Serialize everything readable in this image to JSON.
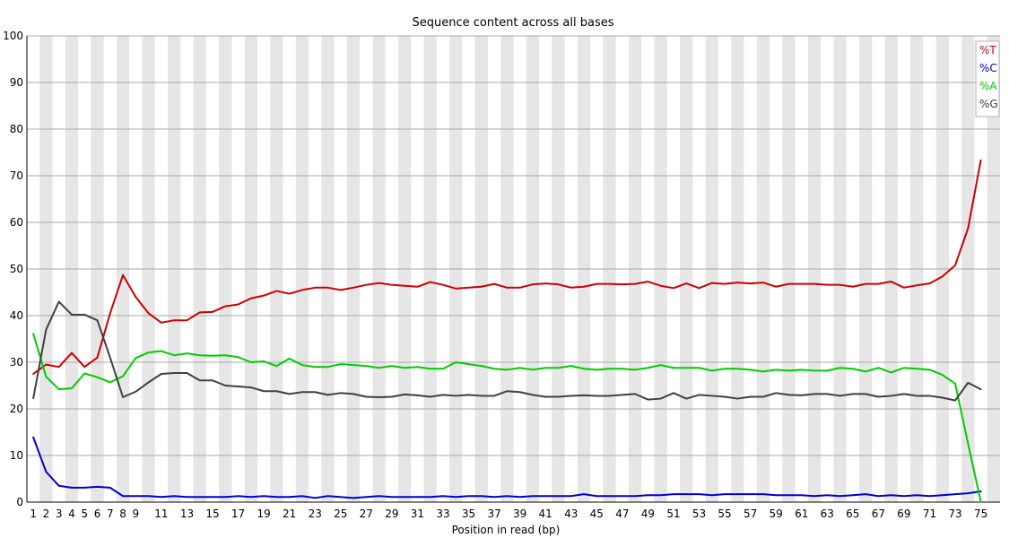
{
  "chart_data": {
    "type": "line",
    "title": "Sequence content across all bases",
    "xlabel": "Position in read (bp)",
    "ylabel": "",
    "ylim": [
      0,
      100
    ],
    "yticks": [
      0,
      10,
      20,
      30,
      40,
      50,
      60,
      70,
      80,
      90,
      100
    ],
    "x": [
      1,
      2,
      3,
      4,
      5,
      6,
      7,
      8,
      9,
      10,
      11,
      12,
      13,
      14,
      15,
      16,
      17,
      18,
      19,
      20,
      21,
      22,
      23,
      24,
      25,
      26,
      27,
      28,
      29,
      30,
      31,
      32,
      33,
      34,
      35,
      36,
      37,
      38,
      39,
      40,
      41,
      42,
      43,
      44,
      45,
      46,
      47,
      48,
      49,
      50,
      51,
      52,
      53,
      54,
      55,
      56,
      57,
      58,
      59,
      60,
      61,
      62,
      63,
      64,
      65,
      66,
      67,
      68,
      69,
      70,
      71,
      72,
      73,
      74,
      75
    ],
    "x_tick_labels": [
      "1",
      "2",
      "3",
      "4",
      "5",
      "6",
      "7",
      "8",
      "9",
      "11",
      "13",
      "15",
      "17",
      "19",
      "21",
      "23",
      "25",
      "27",
      "29",
      "31",
      "33",
      "35",
      "37",
      "39",
      "41",
      "43",
      "45",
      "47",
      "49",
      "51",
      "53",
      "55",
      "57",
      "59",
      "61",
      "63",
      "65",
      "67",
      "69",
      "71",
      "73",
      "75"
    ],
    "grid": "alternating vertical bands",
    "legend_position": "top-right",
    "series": [
      {
        "name": "%T",
        "color": "#cc0000",
        "values": [
          27.5,
          29.5,
          29.0,
          32.0,
          29.0,
          31.0,
          40.5,
          48.7,
          44.0,
          40.5,
          38.5,
          39.0,
          39.0,
          40.7,
          40.8,
          42.0,
          42.4,
          43.7,
          44.3,
          45.3,
          44.7,
          45.5,
          46.0,
          46.0,
          45.5,
          46.0,
          46.6,
          47.0,
          46.6,
          46.4,
          46.2,
          47.2,
          46.6,
          45.8,
          46.0,
          46.2,
          46.8,
          46.0,
          46.0,
          46.7,
          46.9,
          46.7,
          46.0,
          46.2,
          46.8,
          46.8,
          46.7,
          46.8,
          47.3,
          46.4,
          45.9,
          46.9,
          45.9,
          47.0,
          46.8,
          47.1,
          46.9,
          47.1,
          46.2,
          46.8,
          46.8,
          46.8,
          46.6,
          46.6,
          46.2,
          46.8,
          46.8,
          47.3,
          46.0,
          46.5,
          46.9,
          48.4,
          50.8,
          58.7,
          73.3
        ]
      },
      {
        "name": "%C",
        "color": "#0000cc",
        "values": [
          13.9,
          6.5,
          3.5,
          3.1,
          3.1,
          3.3,
          3.1,
          1.3,
          1.3,
          1.3,
          1.1,
          1.3,
          1.1,
          1.1,
          1.1,
          1.1,
          1.3,
          1.1,
          1.3,
          1.1,
          1.1,
          1.3,
          0.9,
          1.3,
          1.1,
          0.9,
          1.1,
          1.3,
          1.1,
          1.1,
          1.1,
          1.1,
          1.3,
          1.1,
          1.3,
          1.3,
          1.1,
          1.3,
          1.1,
          1.3,
          1.3,
          1.3,
          1.3,
          1.7,
          1.3,
          1.3,
          1.3,
          1.3,
          1.5,
          1.5,
          1.7,
          1.7,
          1.7,
          1.5,
          1.7,
          1.7,
          1.7,
          1.7,
          1.5,
          1.5,
          1.5,
          1.3,
          1.5,
          1.3,
          1.5,
          1.7,
          1.3,
          1.5,
          1.3,
          1.5,
          1.3,
          1.5,
          1.7,
          1.9,
          2.3
        ]
      },
      {
        "name": "%A",
        "color": "#00cc00",
        "values": [
          36.1,
          26.9,
          24.2,
          24.4,
          27.6,
          26.8,
          25.7,
          27.0,
          30.9,
          32.1,
          32.4,
          31.5,
          31.9,
          31.5,
          31.4,
          31.5,
          31.1,
          30.0,
          30.2,
          29.2,
          30.8,
          29.4,
          29.0,
          29.0,
          29.6,
          29.4,
          29.2,
          28.8,
          29.2,
          28.8,
          29.0,
          28.6,
          28.6,
          30.0,
          29.6,
          29.2,
          28.6,
          28.4,
          28.8,
          28.4,
          28.8,
          28.8,
          29.2,
          28.6,
          28.4,
          28.6,
          28.6,
          28.4,
          28.8,
          29.4,
          28.8,
          28.8,
          28.8,
          28.2,
          28.6,
          28.6,
          28.4,
          28.0,
          28.4,
          28.2,
          28.4,
          28.2,
          28.2,
          28.8,
          28.6,
          28.0,
          28.8,
          27.8,
          28.8,
          28.6,
          28.4,
          27.3,
          25.4,
          12.6,
          0.1
        ]
      },
      {
        "name": "%G",
        "color": "#404040",
        "values": [
          22.3,
          37.0,
          43.0,
          40.2,
          40.2,
          39.0,
          31.0,
          22.5,
          23.7,
          25.7,
          27.5,
          27.7,
          27.7,
          26.1,
          26.1,
          25.0,
          24.8,
          24.6,
          23.8,
          23.8,
          23.2,
          23.6,
          23.6,
          23.0,
          23.4,
          23.2,
          22.6,
          22.5,
          22.6,
          23.1,
          22.9,
          22.6,
          23.0,
          22.8,
          23.0,
          22.8,
          22.8,
          23.8,
          23.6,
          23.0,
          22.6,
          22.6,
          22.8,
          22.9,
          22.8,
          22.8,
          23.0,
          23.2,
          22.0,
          22.2,
          23.4,
          22.2,
          23.0,
          22.8,
          22.6,
          22.2,
          22.6,
          22.6,
          23.4,
          23.0,
          22.9,
          23.2,
          23.2,
          22.8,
          23.2,
          23.2,
          22.6,
          22.8,
          23.2,
          22.8,
          22.8,
          22.4,
          21.8,
          25.6,
          24.2
        ]
      }
    ]
  }
}
